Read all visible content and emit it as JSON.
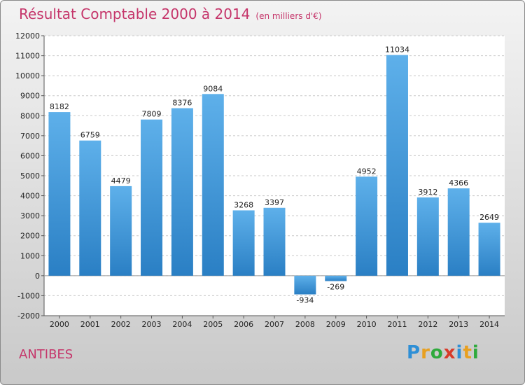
{
  "header": {
    "title": "Résultat Comptable 2000 à 2014",
    "subtitle": "(en milliers d'€)"
  },
  "footer": {
    "city": "ANTIBES",
    "logo": [
      "P",
      "r",
      "o",
      "x",
      "i",
      "t",
      "i"
    ]
  },
  "colors": {
    "title": "#c5356a",
    "bar_top": "#5eb0ea",
    "bar_bottom": "#2a7fc4",
    "logo": [
      "#2e8fd6",
      "#e8a020",
      "#2eaa3c",
      "#d83b2a",
      "#2e8fd6",
      "#e8a020",
      "#2eaa3c"
    ]
  },
  "chart_data": {
    "type": "bar",
    "categories": [
      "2000",
      "2001",
      "2002",
      "2003",
      "2004",
      "2005",
      "2006",
      "2007",
      "2008",
      "2009",
      "2010",
      "2011",
      "2012",
      "2013",
      "2014"
    ],
    "values": [
      8182,
      6759,
      4479,
      7809,
      8376,
      9084,
      3268,
      3397,
      -934,
      -269,
      4952,
      11034,
      3912,
      4366,
      2649
    ],
    "title": "Résultat Comptable 2000 à 2014",
    "ylim": [
      -2000,
      12000
    ],
    "yticks": [
      -2000,
      -1000,
      0,
      1000,
      2000,
      3000,
      4000,
      5000,
      6000,
      7000,
      8000,
      9000,
      10000,
      11000,
      12000
    ],
    "grid": true
  }
}
